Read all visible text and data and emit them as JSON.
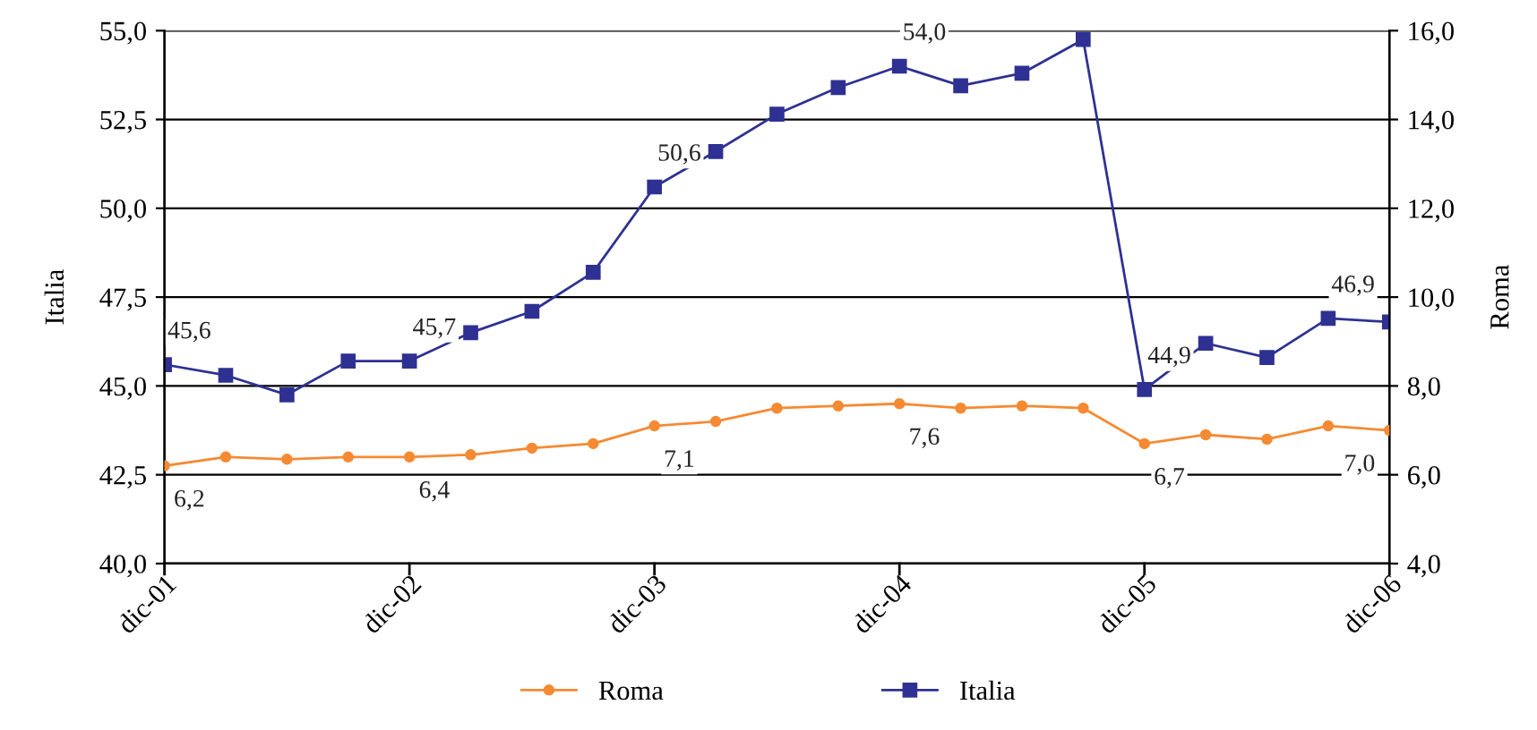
{
  "chart_data": {
    "type": "line",
    "categories": [
      "dic-01",
      null,
      null,
      null,
      "dic-02",
      null,
      null,
      null,
      "dic-03",
      null,
      null,
      null,
      "dic-04",
      null,
      null,
      null,
      "dic-05",
      null,
      null,
      null,
      "dic-06"
    ],
    "series": [
      {
        "name": "Roma",
        "color": "#f58a33",
        "axis": "y2",
        "marker": "circle",
        "values": [
          6.2,
          6.4,
          6.35,
          6.4,
          6.4,
          6.45,
          6.6,
          6.7,
          7.1,
          7.2,
          7.5,
          7.55,
          7.6,
          7.5,
          7.55,
          7.5,
          6.7,
          6.9,
          6.8,
          7.1,
          7.0
        ],
        "value_labels": [
          "6,2",
          null,
          null,
          null,
          "6,4",
          null,
          null,
          null,
          "7,1",
          null,
          null,
          null,
          "7,6",
          null,
          null,
          null,
          "6,7",
          null,
          null,
          null,
          "7,0"
        ]
      },
      {
        "name": "Italia",
        "color": "#2e3192",
        "marker": "square",
        "values": [
          45.6,
          45.3,
          44.75,
          45.7,
          45.7,
          46.5,
          47.1,
          48.2,
          50.6,
          51.6,
          52.65,
          53.4,
          54.0,
          53.45,
          53.8,
          54.75,
          44.9,
          46.2,
          45.8,
          46.9,
          46.8
        ],
        "value_labels": [
          "45,6",
          null,
          null,
          null,
          "45,7",
          null,
          null,
          null,
          "50,6",
          null,
          null,
          null,
          "54,0",
          null,
          null,
          null,
          "44,9",
          null,
          null,
          "46,9",
          null
        ]
      }
    ],
    "ylabel": "Italia",
    "y2label": "Roma",
    "ylim": [
      40,
      55
    ],
    "yticks": [
      {
        "value": 40,
        "label": "40,0"
      },
      {
        "value": 42.5,
        "label": "42,5"
      },
      {
        "value": 45,
        "label": "45,0"
      },
      {
        "value": 47.5,
        "label": "47,5"
      },
      {
        "value": 50,
        "label": "50,0"
      },
      {
        "value": 52.5,
        "label": "52,5"
      },
      {
        "value": 55,
        "label": "55,0"
      }
    ],
    "y2lim": [
      4,
      16
    ],
    "y2ticks": [
      {
        "value": 4,
        "label": "4,0"
      },
      {
        "value": 6,
        "label": "6,0"
      },
      {
        "value": 8,
        "label": "8,0"
      },
      {
        "value": 10,
        "label": "10,0"
      },
      {
        "value": 12,
        "label": "12,0"
      },
      {
        "value": 14,
        "label": "14,0"
      },
      {
        "value": 16,
        "label": "16,0"
      }
    ],
    "grid": "y",
    "legend": "bottom"
  }
}
